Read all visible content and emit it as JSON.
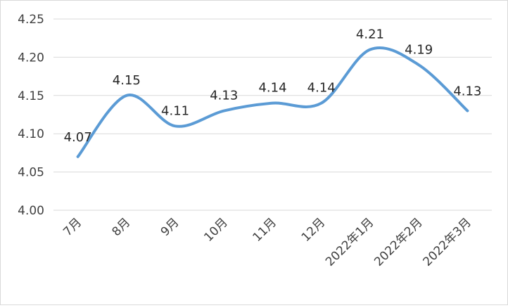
{
  "chart_data": {
    "type": "line",
    "title": "",
    "xlabel": "",
    "ylabel": "",
    "categories": [
      "7月",
      "8月",
      "9月",
      "10月",
      "11月",
      "12月",
      "2022年1月",
      "2022年2月",
      "2022年3月"
    ],
    "series": [
      {
        "values": [
          4.07,
          4.15,
          4.11,
          4.13,
          4.14,
          4.14,
          4.21,
          4.19,
          4.13
        ]
      }
    ],
    "data_labels": [
      "4.07",
      "4.15",
      "4.11",
      "4.13",
      "4.14",
      "4.14",
      "4.21",
      "4.19",
      "4.13"
    ],
    "yticks": [
      "4.00",
      "4.05",
      "4.10",
      "4.15",
      "4.20",
      "4.25"
    ],
    "ylim": [
      4.0,
      4.25
    ],
    "grid": true,
    "smooth": true,
    "legend": "none",
    "colors": {
      "line": "#5b9bd5",
      "grid": "#d9d9d9"
    }
  }
}
